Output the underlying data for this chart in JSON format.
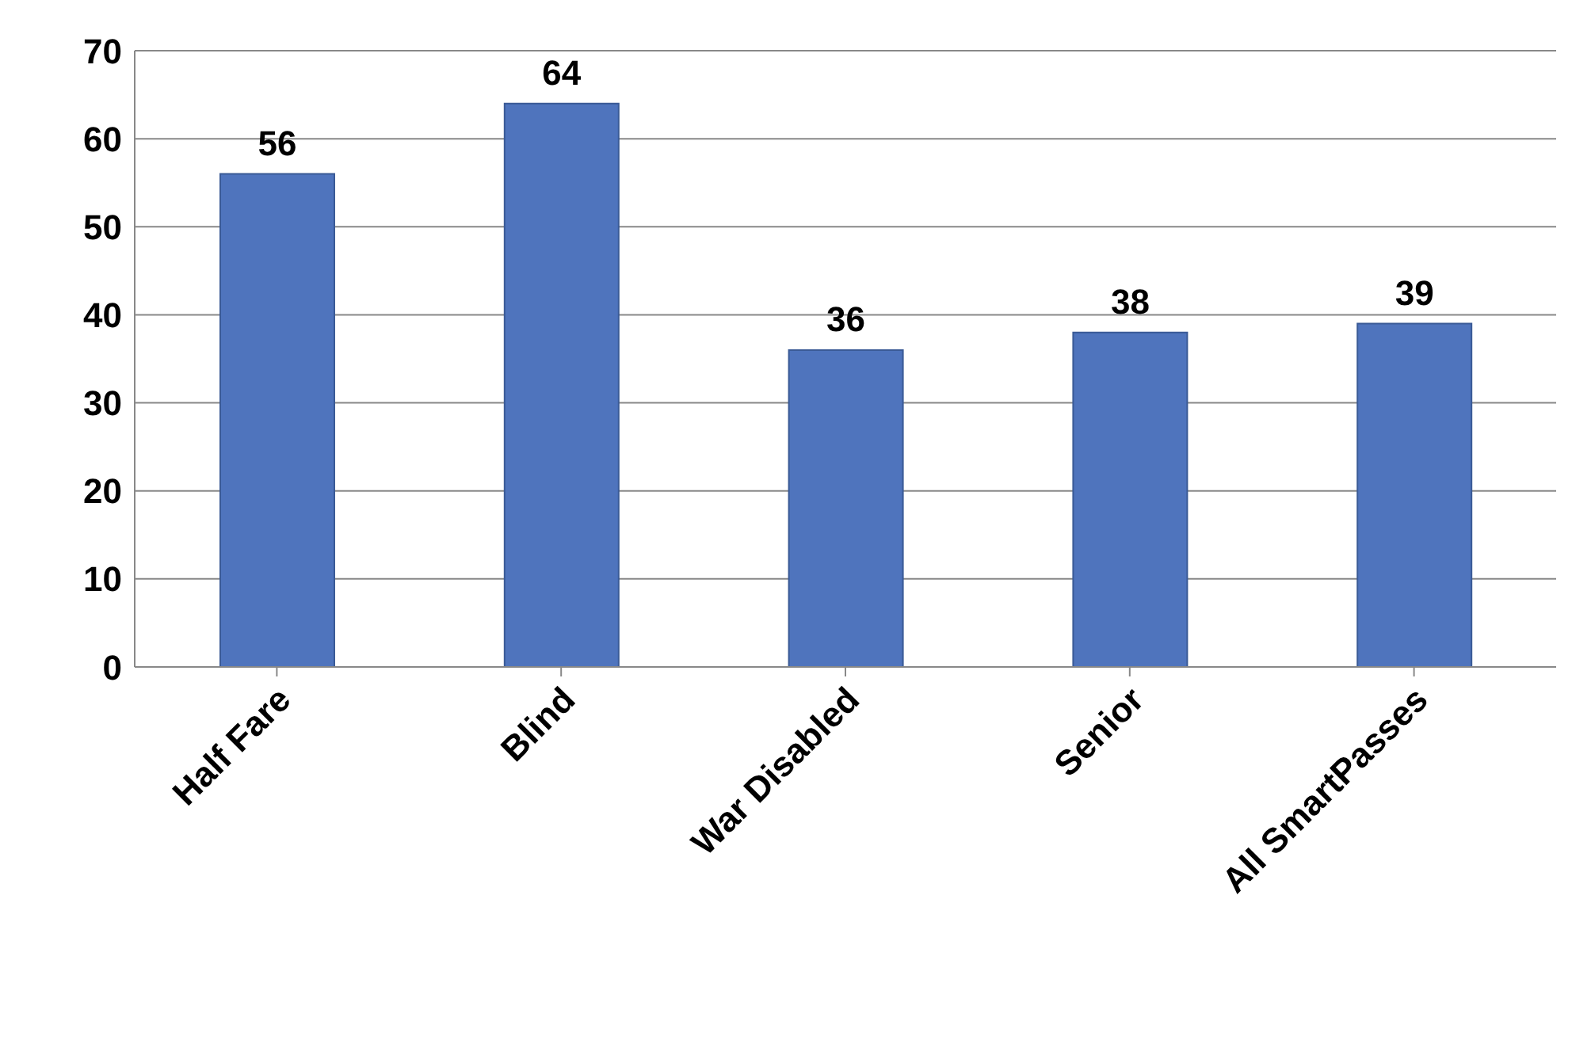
{
  "chart_data": {
    "type": "bar",
    "categories": [
      "Half Fare",
      "Blind",
      "War Disabled",
      "Senior",
      "All SmartPasses"
    ],
    "values": [
      56,
      64,
      36,
      38,
      39
    ],
    "color": "#4f74bd",
    "ylim": [
      0,
      70
    ],
    "yticks": [
      0,
      10,
      20,
      30,
      40,
      50,
      60,
      70
    ],
    "grid": "y",
    "data_labels": true
  }
}
